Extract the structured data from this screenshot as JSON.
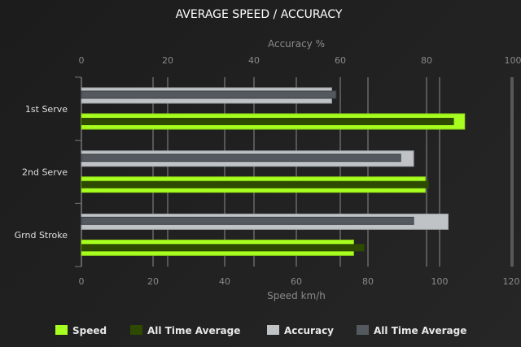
{
  "chart_data": {
    "type": "bar",
    "orientation": "horizontal",
    "title": "AVERAGE SPEED / ACCURACY",
    "categories": [
      "1st Serve",
      "2nd Serve",
      "Grnd Stroke"
    ],
    "top_axis": {
      "label": "Accuracy %",
      "range": [
        0,
        100
      ],
      "ticks": [
        0,
        20,
        40,
        60,
        80,
        100
      ]
    },
    "bottom_axis": {
      "label": "Speed km/h",
      "range": [
        0,
        120
      ],
      "ticks": [
        0,
        20,
        40,
        60,
        80,
        100,
        120
      ]
    },
    "grid": true,
    "legend_position": "bottom",
    "series": [
      {
        "name": "Speed",
        "axis": "speed",
        "color": "#a6ff1f",
        "values": [
          107,
          96,
          76
        ]
      },
      {
        "name": "All Time Average",
        "axis": "speed",
        "color": "#2e4a00",
        "values": [
          104,
          97,
          79
        ]
      },
      {
        "name": "Accuracy",
        "axis": "accuracy",
        "color": "#bfc3c5",
        "values": [
          58,
          77,
          85
        ]
      },
      {
        "name": "All Time Average",
        "axis": "accuracy",
        "color": "#545960",
        "values": [
          59,
          74,
          77
        ]
      }
    ]
  }
}
